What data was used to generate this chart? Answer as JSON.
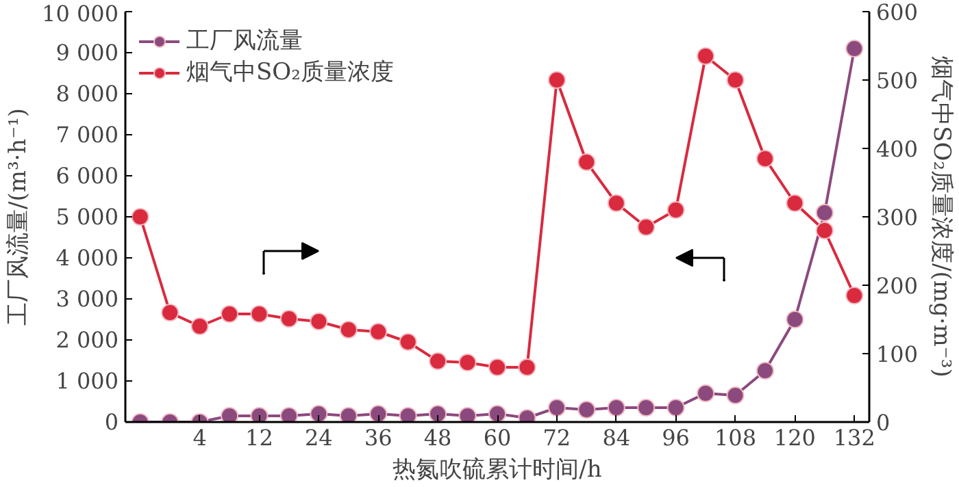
{
  "chart_data": {
    "type": "line",
    "xlabel": "热氮吹硫累计时间/h",
    "ylabel": "工厂风流量/(m³·h⁻¹)",
    "y2label": "烟气中SO₂质量浓度/(mg·m⁻³)",
    "categories": [
      null,
      null,
      "4",
      null,
      "12",
      null,
      "24",
      null,
      "36",
      null,
      "48",
      null,
      "60",
      null,
      "72",
      null,
      "84",
      null,
      "96",
      null,
      "108",
      null,
      "120",
      null,
      "132"
    ],
    "series": [
      {
        "name": "工厂风流量",
        "color": "#8b4a7e",
        "values": [
          0,
          0,
          0,
          150,
          150,
          150,
          200,
          150,
          200,
          150,
          200,
          150,
          200,
          100,
          350,
          300,
          350,
          350,
          350,
          700,
          650,
          1250,
          2500,
          5100,
          9100
        ]
      },
      {
        "name": "烟气中SO₂质量浓度",
        "color": "#d92a3e",
        "axis": "y2",
        "values": [
          300,
          160,
          140,
          158,
          158,
          151,
          147,
          135,
          132,
          117,
          89,
          87,
          80,
          80,
          500,
          380,
          320,
          285,
          310,
          535,
          500,
          385,
          320,
          280,
          185
        ]
      }
    ],
    "ylim": [
      0,
      10000
    ],
    "yticks": [
      0,
      {
        "value": 1000,
        "label": "1 000"
      },
      {
        "value": 2000,
        "label": "2 000"
      },
      {
        "value": 3000,
        "label": "3 000"
      },
      {
        "value": 4000,
        "label": "4 000"
      },
      {
        "value": 5000,
        "label": "5 000"
      },
      {
        "value": 6000,
        "label": "6 000"
      },
      {
        "value": 7000,
        "label": "7 000"
      },
      {
        "value": 8000,
        "label": "8 000"
      },
      {
        "value": 9000,
        "label": "9 000"
      },
      {
        "value": 10000,
        "label": "10 000"
      }
    ],
    "y2lim": [
      0,
      600
    ],
    "y2ticks": [
      0,
      100,
      200,
      300,
      400,
      500,
      600
    ],
    "legend": "top left",
    "marker": "circle",
    "grid": false
  }
}
